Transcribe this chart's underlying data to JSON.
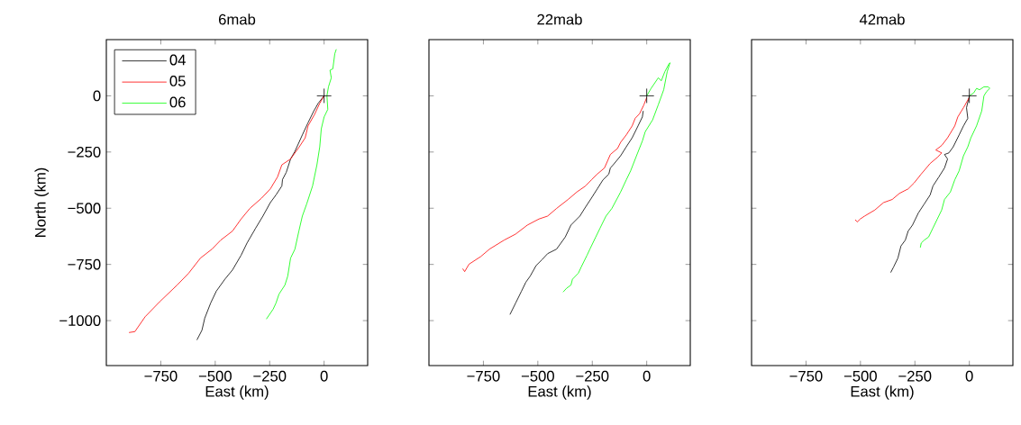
{
  "chart_data": [
    {
      "type": "line",
      "title": "6mab",
      "xlabel": "East (km)",
      "ylabel": "North (km)",
      "xlim": [
        -1000,
        200
      ],
      "ylim": [
        -1200,
        250
      ],
      "xticks": [
        {
          "value": -750,
          "label": "−750"
        },
        {
          "value": -500,
          "label": "−500"
        },
        {
          "value": -250,
          "label": "−250"
        },
        0
      ],
      "yticks": [
        {
          "value": -1000,
          "label": "−1000"
        },
        {
          "value": -750,
          "label": "−750"
        },
        {
          "value": -500,
          "label": "−500"
        },
        {
          "value": -250,
          "label": "−250"
        },
        0
      ],
      "legend": "top left",
      "series": [
        {
          "name": "04",
          "color": "#000000",
          "x": [
            0,
            -27,
            -47,
            -74,
            -100,
            -134,
            -154,
            -174,
            -191,
            -194,
            -221,
            -247,
            -281,
            -314,
            -354,
            -381,
            -421,
            -455,
            -495,
            -521,
            -548,
            -561,
            -584
          ],
          "values": [
            0,
            -33,
            -67,
            -120,
            -174,
            -247,
            -281,
            -341,
            -372,
            -401,
            -441,
            -475,
            -535,
            -588,
            -655,
            -709,
            -775,
            -815,
            -869,
            -922,
            -989,
            -1043,
            -1086
          ]
        },
        {
          "name": "05",
          "color": "#ff0000",
          "x": [
            0,
            -20,
            -44,
            -74,
            -87,
            -114,
            -154,
            -194,
            -214,
            -247,
            -287,
            -341,
            -381,
            -421,
            -475,
            -515,
            -568,
            -622,
            -675,
            -755,
            -822,
            -869,
            -896
          ],
          "values": [
            0,
            -33,
            -83,
            -134,
            -187,
            -227,
            -281,
            -307,
            -361,
            -414,
            -455,
            -501,
            -548,
            -602,
            -642,
            -682,
            -722,
            -789,
            -842,
            -916,
            -983,
            -1049,
            -1053
          ]
        },
        {
          "name": "06",
          "color": "#00ff00",
          "x": [
            56,
            49,
            40,
            27,
            33,
            20,
            13,
            17,
            0,
            -13,
            -20,
            -33,
            -53,
            -80,
            -100,
            -116,
            -134,
            -154,
            -167,
            -180,
            -207,
            -221,
            -234,
            -265
          ],
          "values": [
            207,
            187,
            120,
            114,
            80,
            40,
            0,
            -60,
            -94,
            -147,
            -227,
            -307,
            -401,
            -481,
            -535,
            -602,
            -682,
            -722,
            -802,
            -842,
            -882,
            -922,
            -949,
            -993
          ]
        },
        {
          "type": "scatter",
          "marker": "cross",
          "color": "#000000",
          "x": [
            0
          ],
          "values": [
            0
          ]
        }
      ]
    },
    {
      "type": "line",
      "title": "22mab",
      "xlabel": "East (km)",
      "xlim": [
        -1000,
        200
      ],
      "ylim": [
        -1200,
        250
      ],
      "xticks": [
        {
          "value": -750,
          "label": "−750"
        },
        {
          "value": -500,
          "label": "−500"
        },
        {
          "value": -250,
          "label": "−250"
        },
        0
      ],
      "yticks": [
        -1000,
        -750,
        -500,
        -250,
        0
      ],
      "tick_labels": "x",
      "series": [
        {
          "color": "#000000",
          "x": [
            -16,
            -20,
            -40,
            -67,
            -94,
            -120,
            -154,
            -167,
            -174,
            -201,
            -227,
            -254,
            -281,
            -307,
            -348,
            -374,
            -414,
            -455,
            -481,
            -508,
            -535,
            -555,
            -575,
            -602,
            -628
          ],
          "values": [
            -67,
            -94,
            -134,
            -187,
            -227,
            -267,
            -307,
            -321,
            -348,
            -374,
            -414,
            -455,
            -495,
            -535,
            -575,
            -628,
            -682,
            -702,
            -729,
            -755,
            -802,
            -829,
            -869,
            -922,
            -973
          ]
        },
        {
          "color": "#ff0000",
          "x": [
            0,
            -13,
            -33,
            -53,
            -67,
            -94,
            -120,
            -134,
            -167,
            -194,
            -227,
            -254,
            -281,
            -321,
            -361,
            -414,
            -455,
            -495,
            -548,
            -602,
            -655,
            -722,
            -762,
            -816,
            -836,
            -845
          ],
          "values": [
            -7,
            -40,
            -80,
            -100,
            -134,
            -174,
            -207,
            -234,
            -261,
            -321,
            -348,
            -374,
            -401,
            -428,
            -461,
            -501,
            -535,
            -548,
            -575,
            -615,
            -642,
            -682,
            -715,
            -749,
            -782,
            -769
          ]
        },
        {
          "color": "#00ff00",
          "x": [
            0,
            20,
            53,
            67,
            83,
            101,
            107,
            94,
            78,
            53,
            27,
            -7,
            -20,
            -47,
            -74,
            -94,
            -120,
            -160,
            -187,
            -214,
            -234,
            -261,
            -274,
            -301,
            -314,
            -341,
            -348,
            -368,
            -384
          ],
          "values": [
            0,
            33,
            80,
            67,
            107,
            140,
            147,
            107,
            27,
            -40,
            -107,
            -160,
            -201,
            -267,
            -334,
            -374,
            -428,
            -501,
            -535,
            -588,
            -628,
            -682,
            -709,
            -762,
            -789,
            -816,
            -842,
            -856,
            -873
          ]
        },
        {
          "type": "scatter",
          "marker": "cross",
          "color": "#000000",
          "x": [
            0
          ],
          "values": [
            0
          ]
        }
      ]
    },
    {
      "type": "line",
      "title": "42mab",
      "xlabel": "East (km)",
      "xlim": [
        -1000,
        200
      ],
      "ylim": [
        -1200,
        250
      ],
      "xticks": [
        {
          "value": -750,
          "label": "−750"
        },
        {
          "value": -500,
          "label": "−500"
        },
        {
          "value": -250,
          "label": "−250"
        },
        0
      ],
      "yticks": [
        -1000,
        -750,
        -500,
        -250,
        0
      ],
      "tick_labels": "x",
      "series": [
        {
          "color": "#000000",
          "x": [
            0,
            -13,
            -7,
            -27,
            -47,
            -74,
            -94,
            -114,
            -100,
            -114,
            -140,
            -167,
            -180,
            -207,
            -234,
            -261,
            -281,
            -294,
            -314,
            -328,
            -348,
            -361
          ],
          "values": [
            0,
            -53,
            -100,
            -134,
            -174,
            -227,
            -254,
            -261,
            -281,
            -321,
            -361,
            -401,
            -441,
            -481,
            -521,
            -575,
            -602,
            -642,
            -668,
            -722,
            -762,
            -786
          ]
        },
        {
          "color": "#ff0000",
          "x": [
            0,
            -27,
            -53,
            -67,
            -100,
            -127,
            -154,
            -127,
            -147,
            -180,
            -221,
            -254,
            -281,
            -321,
            -354,
            -394,
            -434,
            -481,
            -501,
            -515,
            -524
          ],
          "values": [
            -7,
            -53,
            -94,
            -134,
            -187,
            -221,
            -241,
            -254,
            -274,
            -301,
            -348,
            -388,
            -414,
            -434,
            -461,
            -475,
            -508,
            -535,
            -548,
            -561,
            -551
          ]
        },
        {
          "color": "#00ff00",
          "x": [
            0,
            20,
            33,
            47,
            67,
            87,
            94,
            80,
            67,
            57,
            33,
            7,
            -7,
            -27,
            -47,
            -67,
            -87,
            -114,
            -127,
            -147,
            -167,
            -187,
            -207,
            -221,
            -225
          ],
          "values": [
            0,
            13,
            33,
            27,
            40,
            40,
            33,
            20,
            0,
            -67,
            -134,
            -187,
            -227,
            -267,
            -334,
            -374,
            -428,
            -461,
            -508,
            -548,
            -588,
            -628,
            -642,
            -655,
            -675
          ]
        },
        {
          "type": "scatter",
          "marker": "cross",
          "color": "#000000",
          "x": [
            0
          ],
          "values": [
            0
          ]
        }
      ]
    }
  ]
}
